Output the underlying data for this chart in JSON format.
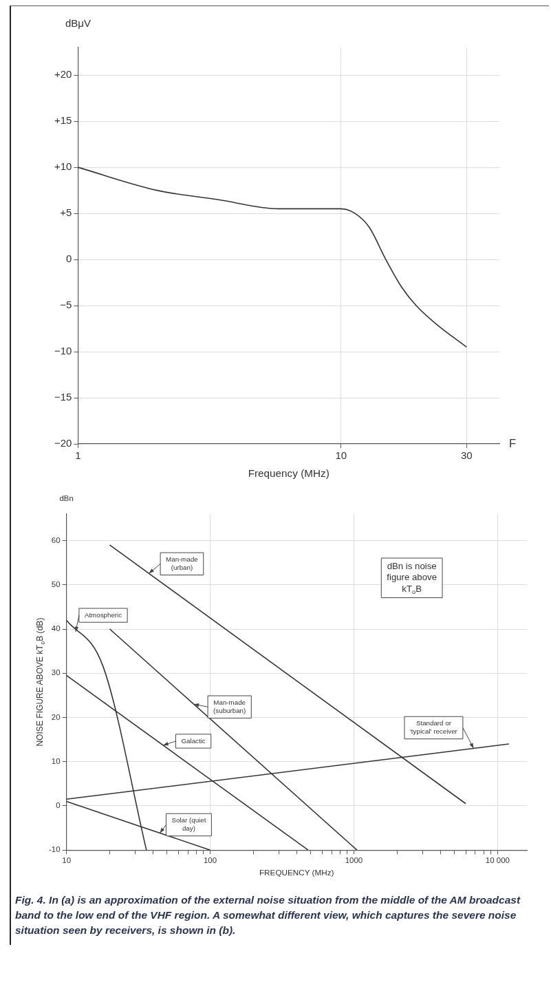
{
  "chart_data": [
    {
      "type": "line",
      "xlabel": "Frequency (MHz)",
      "ylabel": "dBμV",
      "annotations": [
        "F"
      ],
      "log": "x",
      "grid": true,
      "legend": false,
      "marker": "none",
      "line_style": "solid",
      "xlim": [
        1,
        40
      ],
      "xticks": [
        1,
        10,
        30
      ],
      "ylim": [
        -20,
        23
      ],
      "yticks": [
        {
          "value": -20,
          "label": "−20"
        },
        {
          "value": -15,
          "label": "−15"
        },
        {
          "value": -10,
          "label": "−10"
        },
        {
          "value": -5,
          "label": "−5"
        },
        0,
        {
          "value": 5,
          "label": "+5"
        },
        {
          "value": 10,
          "label": "+10"
        },
        {
          "value": 15,
          "label": "+15"
        },
        {
          "value": 20,
          "label": "+20"
        }
      ],
      "series": [
        {
          "color": "#333333",
          "x": [
            1,
            2,
            3.4,
            5.8,
            10,
            11.3,
            12.8,
            14.8,
            17,
            19.3,
            23,
            30
          ],
          "values": [
            10,
            7.5,
            6.5,
            5.5,
            5.5,
            5,
            3.5,
            0,
            -3,
            -5,
            -7,
            -9.5
          ]
        }
      ]
    },
    {
      "type": "line",
      "xlabel": "FREQUENCY (MHz)",
      "ylabel": "NOISE FIGURE ABOVE kT$_{o}$B (dB)",
      "annotations": [
        "dBn",
        "dBn is noise figure above kT$_{o}$B",
        "Fig. 4. In (a) is an approximation of the external noise situation from the middle of the AM broadcast band to the low end of the VHF region. A somewhat different view, which captures the severe noise situation seen by receivers, is shown in (b)."
      ],
      "log": "x",
      "grid": true,
      "legend": false,
      "marker": "none",
      "line_style": "solid",
      "xlim": [
        10,
        16000
      ],
      "xticks": [
        10,
        {
          "value": 20,
          "label": null
        },
        {
          "value": 30,
          "label": null
        },
        {
          "value": 40,
          "label": null
        },
        {
          "value": 50,
          "label": null
        },
        {
          "value": 60,
          "label": null
        },
        {
          "value": 70,
          "label": null
        },
        {
          "value": 80,
          "label": null
        },
        {
          "value": 90,
          "label": null
        },
        100,
        {
          "value": 200,
          "label": null
        },
        {
          "value": 300,
          "label": null
        },
        {
          "value": 400,
          "label": null
        },
        {
          "value": 500,
          "label": null
        },
        {
          "value": 600,
          "label": null
        },
        {
          "value": 700,
          "label": null
        },
        {
          "value": 800,
          "label": null
        },
        {
          "value": 900,
          "label": null
        },
        1000,
        {
          "value": 2000,
          "label": null
        },
        {
          "value": 3000,
          "label": null
        },
        {
          "value": 4000,
          "label": null
        },
        {
          "value": 5000,
          "label": null
        },
        {
          "value": 6000,
          "label": null
        },
        {
          "value": 7000,
          "label": null
        },
        {
          "value": 8000,
          "label": null
        },
        {
          "value": 9000,
          "label": null
        },
        {
          "value": 10000,
          "label": "10 000"
        }
      ],
      "ylim": [
        -10,
        66
      ],
      "yticks": [
        -10,
        0,
        10,
        20,
        30,
        40,
        50,
        60
      ],
      "series": [
        {
          "name": "Man-made (urban)",
          "color": "#333333",
          "x": [
            20,
            6000
          ],
          "values": [
            59,
            0.5
          ]
        },
        {
          "name": "Atmospheric",
          "color": "#333333",
          "x": [
            10,
            18,
            36
          ],
          "values": [
            42,
            31.5,
            -10
          ]
        },
        {
          "name": "Man-made (suburban)",
          "color": "#333333",
          "x": [
            20,
            1050
          ],
          "values": [
            40,
            -10
          ]
        },
        {
          "name": "Galactic",
          "color": "#333333",
          "x": [
            10,
            480
          ],
          "values": [
            29.5,
            -10
          ]
        },
        {
          "name": "Standard or 'typical' receiver",
          "color": "#333333",
          "x": [
            10,
            12000
          ],
          "values": [
            1.5,
            14
          ]
        },
        {
          "name": "Solar (quiet day)",
          "color": "#333333",
          "x": [
            10,
            100
          ],
          "values": [
            1,
            -10
          ]
        }
      ]
    }
  ]
}
